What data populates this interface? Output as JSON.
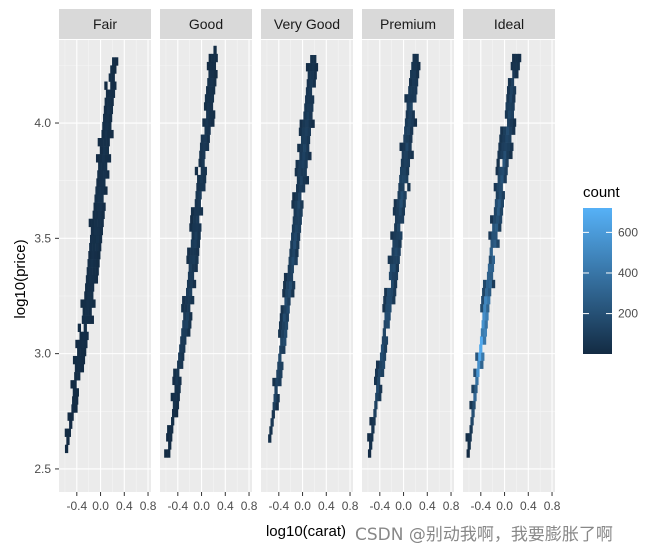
{
  "chart_data": {
    "type": "heatmap",
    "facet_variable": "cut",
    "facets": [
      "Fair",
      "Good",
      "Very Good",
      "Premium",
      "Ideal"
    ],
    "xlabel": "log10(carat)",
    "ylabel": "log10(price)",
    "xlim": [
      -0.7,
      0.85
    ],
    "ylim": [
      2.4,
      4.36
    ],
    "x_ticks": [
      -0.4,
      0.0,
      0.4,
      0.8
    ],
    "x_tick_labels": [
      "-0.4",
      "0.0",
      "0.4",
      "0.8"
    ],
    "y_ticks": [
      2.5,
      3.0,
      3.5,
      4.0
    ],
    "y_tick_labels": [
      "2.5",
      "3.0",
      "3.5",
      "4.0"
    ],
    "legend": {
      "title": "count",
      "placement": "right",
      "ticks": [
        200,
        400,
        600
      ],
      "tick_labels": [
        "200",
        "400",
        "600"
      ],
      "range": [
        1,
        720
      ],
      "color_low": "#132b43",
      "color_high": "#56b1f7"
    },
    "background": "#ebebeb",
    "strip_background": "#d9d9d9",
    "grid": true,
    "bands": [
      {
        "facet": "Fair",
        "points": [
          [
            -0.62,
            2.57,
            0.06,
            1
          ],
          [
            -0.5,
            2.72,
            0.1,
            3
          ],
          [
            -0.4,
            2.93,
            0.16,
            6
          ],
          [
            -0.27,
            3.12,
            0.2,
            10
          ],
          [
            -0.17,
            3.35,
            0.22,
            12
          ],
          [
            -0.08,
            3.55,
            0.24,
            14
          ],
          [
            0.0,
            3.75,
            0.22,
            18
          ],
          [
            0.06,
            3.92,
            0.2,
            15
          ],
          [
            0.12,
            4.08,
            0.2,
            10
          ],
          [
            0.17,
            4.2,
            0.14,
            6
          ],
          [
            0.22,
            4.28,
            0.1,
            3
          ]
        ]
      },
      {
        "facet": "Good",
        "points": [
          [
            -0.6,
            2.55,
            0.06,
            2
          ],
          [
            -0.5,
            2.72,
            0.1,
            10
          ],
          [
            -0.4,
            2.92,
            0.14,
            40
          ],
          [
            -0.3,
            3.1,
            0.16,
            60
          ],
          [
            -0.2,
            3.32,
            0.16,
            55
          ],
          [
            -0.12,
            3.52,
            0.18,
            40
          ],
          [
            -0.04,
            3.7,
            0.2,
            35
          ],
          [
            0.03,
            3.9,
            0.2,
            30
          ],
          [
            0.1,
            4.08,
            0.2,
            22
          ],
          [
            0.16,
            4.22,
            0.16,
            12
          ],
          [
            0.2,
            4.3,
            0.1,
            5
          ]
        ]
      },
      {
        "facet": "Very Good",
        "points": [
          [
            -0.62,
            2.58,
            0.06,
            5
          ],
          [
            -0.52,
            2.72,
            0.1,
            40
          ],
          [
            -0.44,
            2.88,
            0.12,
            100
          ],
          [
            -0.35,
            3.05,
            0.14,
            120
          ],
          [
            -0.26,
            3.25,
            0.16,
            110
          ],
          [
            -0.17,
            3.45,
            0.18,
            90
          ],
          [
            -0.08,
            3.65,
            0.2,
            70
          ],
          [
            0.0,
            3.85,
            0.2,
            60
          ],
          [
            0.07,
            4.03,
            0.2,
            45
          ],
          [
            0.12,
            4.18,
            0.18,
            30
          ],
          [
            0.16,
            4.28,
            0.14,
            12
          ]
        ]
      },
      {
        "facet": "Premium",
        "points": [
          [
            -0.62,
            2.55,
            0.06,
            4
          ],
          [
            -0.52,
            2.7,
            0.1,
            40
          ],
          [
            -0.44,
            2.86,
            0.12,
            110
          ],
          [
            -0.35,
            3.03,
            0.14,
            130
          ],
          [
            -0.26,
            3.22,
            0.16,
            120
          ],
          [
            -0.16,
            3.43,
            0.18,
            100
          ],
          [
            -0.06,
            3.65,
            0.2,
            90
          ],
          [
            0.02,
            3.85,
            0.2,
            80
          ],
          [
            0.09,
            4.03,
            0.2,
            65
          ],
          [
            0.14,
            4.18,
            0.18,
            40
          ],
          [
            0.18,
            4.28,
            0.14,
            15
          ]
        ]
      },
      {
        "facet": "Ideal",
        "points": [
          [
            -0.66,
            2.55,
            0.06,
            4
          ],
          [
            -0.58,
            2.7,
            0.08,
            80
          ],
          [
            -0.5,
            2.85,
            0.1,
            300
          ],
          [
            -0.42,
            3.0,
            0.12,
            720
          ],
          [
            -0.34,
            3.18,
            0.14,
            450
          ],
          [
            -0.24,
            3.38,
            0.16,
            250
          ],
          [
            -0.14,
            3.6,
            0.18,
            150
          ],
          [
            -0.04,
            3.8,
            0.2,
            110
          ],
          [
            0.04,
            3.98,
            0.2,
            80
          ],
          [
            0.1,
            4.15,
            0.2,
            50
          ],
          [
            0.16,
            4.27,
            0.16,
            20
          ]
        ]
      }
    ]
  },
  "watermark": "CSDN @别动我啊，我要膨胀了啊"
}
